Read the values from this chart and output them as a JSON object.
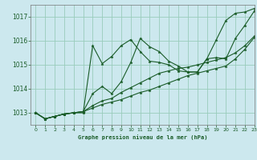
{
  "title": "Graphe pression niveau de la mer (hPa)",
  "bg_color": "#cce8ee",
  "grid_color": "#99ccbb",
  "line_color": "#1a5c28",
  "xlim": [
    -0.5,
    23
  ],
  "ylim": [
    1012.5,
    1017.5
  ],
  "yticks": [
    1013,
    1014,
    1015,
    1016,
    1017
  ],
  "xticks": [
    0,
    1,
    2,
    3,
    4,
    5,
    6,
    7,
    8,
    9,
    10,
    11,
    12,
    13,
    14,
    15,
    16,
    17,
    18,
    19,
    20,
    21,
    22,
    23
  ],
  "series": [
    [
      1013.0,
      1012.75,
      1012.85,
      1012.95,
      1013.0,
      1013.0,
      1015.8,
      1015.05,
      1015.35,
      1015.8,
      1016.05,
      1015.55,
      1015.15,
      1015.1,
      1015.0,
      1014.75,
      1014.7,
      1014.7,
      1015.25,
      1016.05,
      1016.85,
      1017.15,
      1017.2,
      1017.35
    ],
    [
      1013.0,
      1012.75,
      1012.85,
      1012.95,
      1013.0,
      1013.05,
      1013.8,
      1014.1,
      1013.8,
      1014.3,
      1015.1,
      1016.1,
      1015.75,
      1015.55,
      1015.15,
      1014.95,
      1014.7,
      1014.7,
      1015.25,
      1015.3,
      1015.25,
      1016.1,
      1016.65,
      1017.25
    ],
    [
      1013.0,
      1012.75,
      1012.85,
      1012.95,
      1013.0,
      1013.05,
      1013.3,
      1013.5,
      1013.6,
      1013.85,
      1014.05,
      1014.25,
      1014.45,
      1014.65,
      1014.75,
      1014.85,
      1014.9,
      1015.0,
      1015.1,
      1015.2,
      1015.3,
      1015.5,
      1015.8,
      1016.2
    ],
    [
      1013.0,
      1012.75,
      1012.85,
      1012.95,
      1013.0,
      1013.05,
      1013.2,
      1013.35,
      1013.45,
      1013.55,
      1013.7,
      1013.85,
      1013.95,
      1014.1,
      1014.25,
      1014.4,
      1014.55,
      1014.65,
      1014.75,
      1014.85,
      1014.95,
      1015.25,
      1015.65,
      1016.15
    ]
  ]
}
